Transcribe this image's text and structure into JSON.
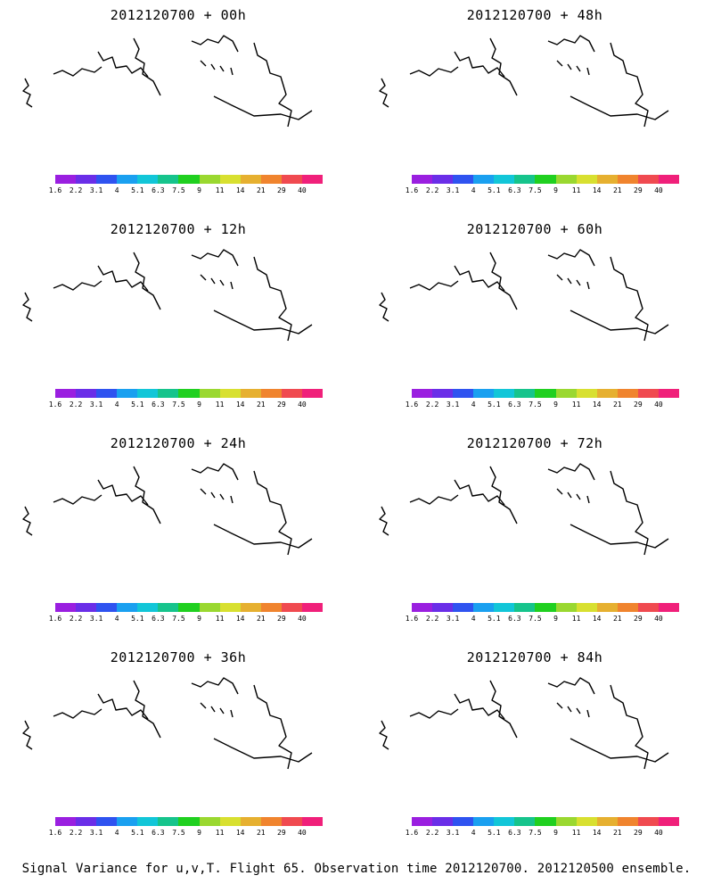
{
  "panels": [
    {
      "title": "2012120700 + 00h",
      "stage": 0
    },
    {
      "title": "2012120700 + 48h",
      "stage": 4
    },
    {
      "title": "2012120700 + 12h",
      "stage": 1
    },
    {
      "title": "2012120700 + 60h",
      "stage": 5
    },
    {
      "title": "2012120700 + 24h",
      "stage": 2
    },
    {
      "title": "2012120700 + 72h",
      "stage": 6
    },
    {
      "title": "2012120700 + 36h",
      "stage": 3
    },
    {
      "title": "2012120700 + 84h",
      "stage": 7
    }
  ],
  "colorbar": {
    "labels": [
      "1.6",
      "2.2",
      "3.1",
      "4",
      "5.1",
      "6.3",
      "7.5",
      "9",
      "11",
      "14",
      "21",
      "29",
      "40"
    ],
    "colors": [
      "#9a1fe0",
      "#6a2ee8",
      "#2f53f0",
      "#1aa0f0",
      "#12c6d8",
      "#16c48c",
      "#20d020",
      "#9ad830",
      "#d8e030",
      "#e6b030",
      "#f0842e",
      "#f04a50",
      "#f0207a"
    ]
  },
  "caption": "Signal Variance for u,v,T. Flight 65. Observation time 2012120700. 2012120500 ensemble."
}
